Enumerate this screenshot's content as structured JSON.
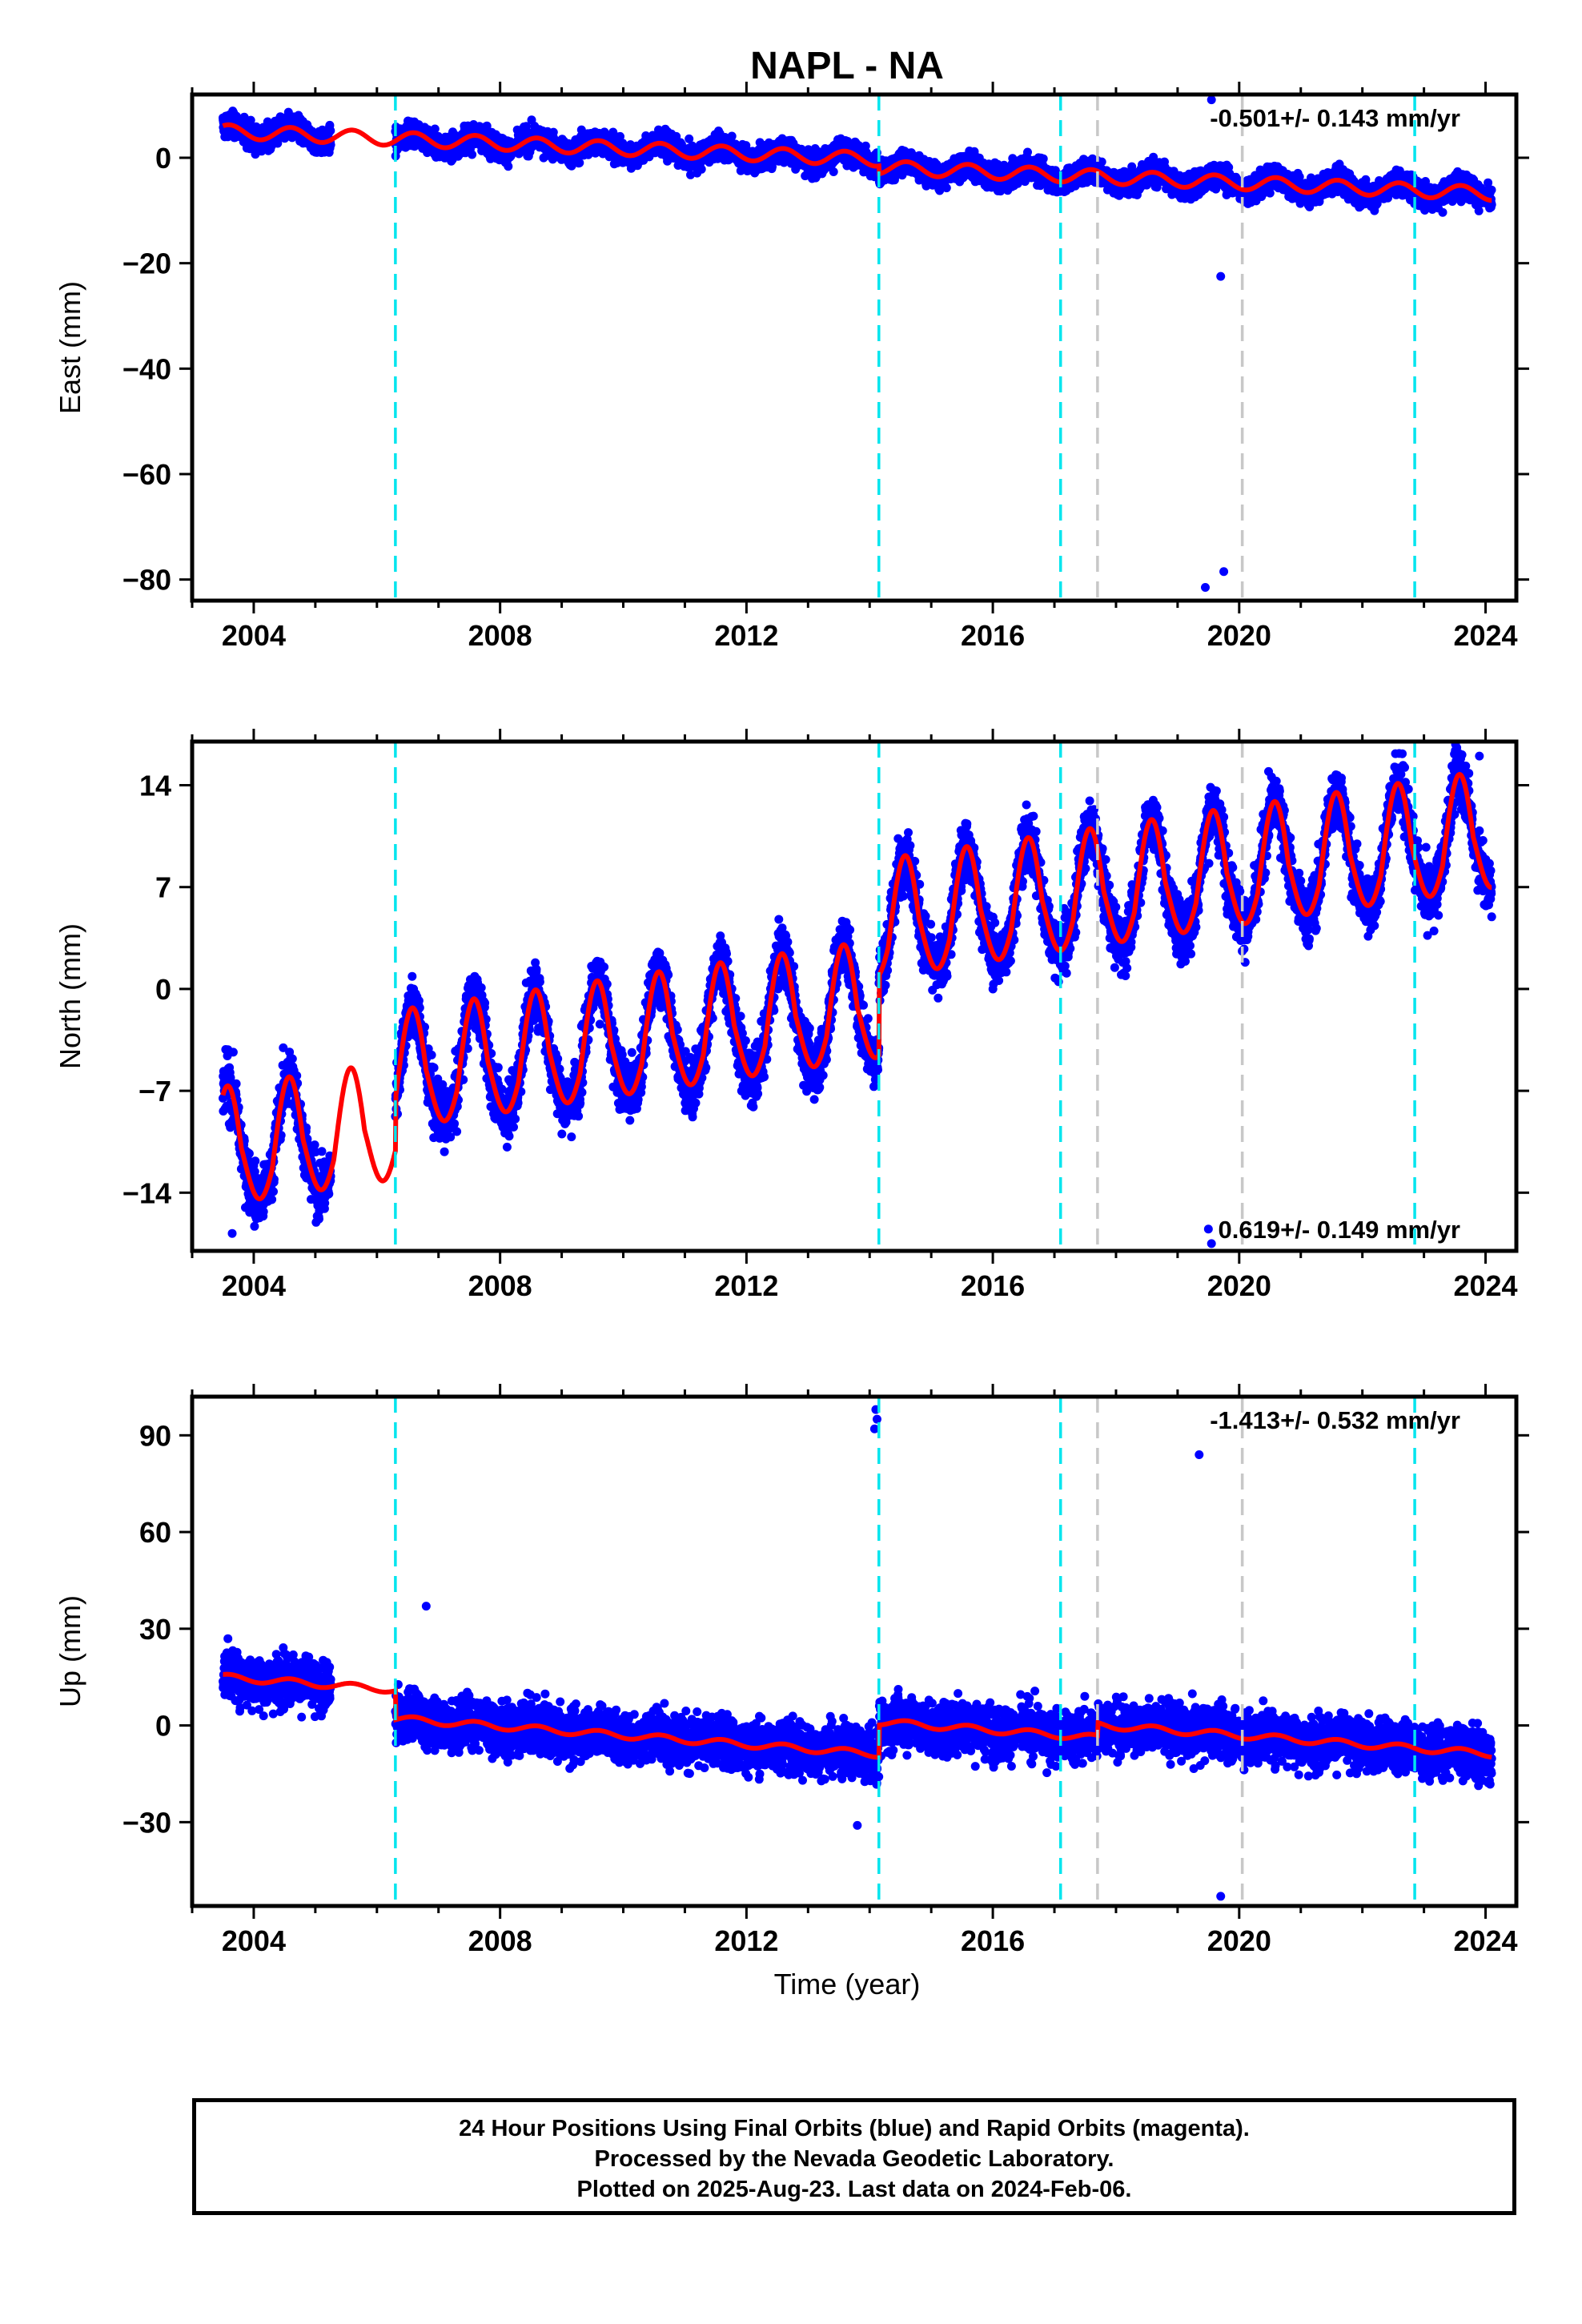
{
  "title": "NAPL - NA",
  "xlabel": "Time (year)",
  "colors": {
    "final_orbits": "#0000ff",
    "rapid_orbits": "#ff00ff",
    "model": "#ff0000",
    "steps_equipment": "#00e5ee",
    "steps_other": "#c8c8c8"
  },
  "chart_data": [
    {
      "type": "scatter",
      "name": "east",
      "ylabel": "East (mm)",
      "rate_label": "-0.501+/- 0.143 mm/yr",
      "xlim": [
        2003.0,
        2024.5
      ],
      "ylim": [
        -84,
        12
      ],
      "x_ticks": [
        2004,
        2008,
        2012,
        2016,
        2020,
        2024
      ],
      "y_ticks": [
        0,
        -20,
        -40,
        -60,
        -80
      ],
      "data_start": 2003.5,
      "data_end": 2024.1,
      "gaps": [
        [
          2005.25,
          2006.3
        ]
      ],
      "trend": {
        "start": 5.0,
        "rate": -0.5,
        "seasonal_amp": 1.3,
        "noise": 1.6,
        "offsets": [
          [
            2014.15,
            -1.5
          ]
        ]
      },
      "outliers": [
        [
          2019.55,
          11
        ],
        [
          2019.45,
          -81.5
        ],
        [
          2019.75,
          -78.5
        ],
        [
          2019.7,
          -22.5
        ]
      ],
      "steps_equipment": [
        2006.3,
        2014.15,
        2017.1,
        2022.85
      ],
      "steps_other": [
        2017.7,
        2020.05
      ]
    },
    {
      "type": "scatter",
      "name": "north",
      "ylabel": "North (mm)",
      "rate_label": "0.619+/- 0.149 mm/yr",
      "xlim": [
        2003.0,
        2024.5
      ],
      "ylim": [
        -18,
        17
      ],
      "x_ticks": [
        2004,
        2008,
        2012,
        2016,
        2020,
        2024
      ],
      "y_ticks": [
        14,
        7,
        0,
        -7,
        -14
      ],
      "data_start": 2003.5,
      "data_end": 2024.1,
      "gaps": [
        [
          2005.25,
          2006.3
        ]
      ],
      "trend": {
        "start": -12.0,
        "rate": 0.62,
        "seasonal_amp": 2.8,
        "noise": 1.4,
        "offsets": [
          [
            2006.3,
            3.5
          ],
          [
            2014.15,
            5.5
          ]
        ]
      },
      "outliers": [
        [
          2023.9,
          16
        ],
        [
          2019.5,
          -16.5
        ],
        [
          2019.55,
          -17.5
        ],
        [
          2003.65,
          -16.8
        ]
      ],
      "steps_equipment": [
        2006.3,
        2014.15,
        2017.1,
        2022.85
      ],
      "steps_other": [
        2017.7,
        2020.05
      ]
    },
    {
      "type": "scatter",
      "name": "up",
      "ylabel": "Up (mm)",
      "rate_label": "-1.413+/- 0.532 mm/yr",
      "xlim": [
        2003.0,
        2024.5
      ],
      "ylim": [
        -56,
        102
      ],
      "x_ticks": [
        2004,
        2008,
        2012,
        2016,
        2020,
        2024
      ],
      "y_ticks": [
        90,
        60,
        30,
        0,
        -30
      ],
      "data_start": 2003.5,
      "data_end": 2024.1,
      "gaps": [
        [
          2005.25,
          2006.3
        ]
      ],
      "trend": {
        "start": 15.0,
        "rate": -1.4,
        "seasonal_amp": 1.0,
        "noise": 5.5,
        "offsets": [
          [
            2006.3,
            -9.0
          ],
          [
            2014.15,
            10.0
          ],
          [
            2017.7,
            4.0
          ]
        ]
      },
      "outliers": [
        [
          2014.1,
          98
        ],
        [
          2014.12,
          95
        ],
        [
          2014.08,
          92
        ],
        [
          2019.35,
          84
        ],
        [
          2006.8,
          37
        ],
        [
          2019.7,
          -53
        ],
        [
          2013.8,
          -31
        ]
      ],
      "steps_equipment": [
        2006.3,
        2014.15,
        2017.1,
        2022.85
      ],
      "steps_other": [
        2017.7,
        2020.05
      ]
    }
  ],
  "footer": {
    "line1": "24 Hour Positions Using Final Orbits (blue) and Rapid Orbits (magenta).",
    "line2": "Processed by the Nevada Geodetic Laboratory.",
    "line3": "Plotted on 2025-Aug-23. Last data on 2024-Feb-06."
  }
}
